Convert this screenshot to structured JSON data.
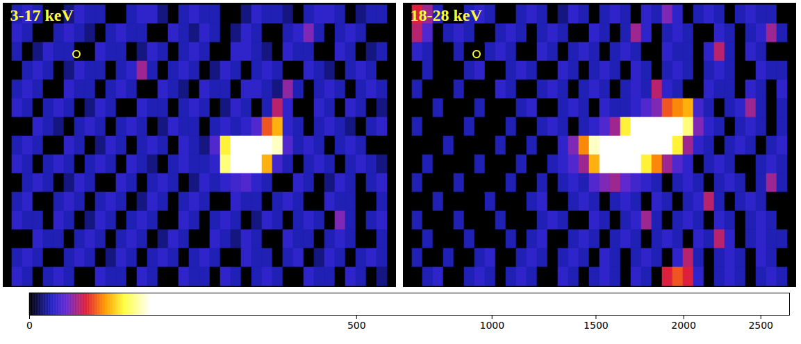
{
  "chart_data": [
    {
      "type": "heatmap",
      "title": "3-17 keV",
      "tick_labels": false,
      "cells": [
        [
          2,
          3,
          2,
          0,
          0,
          1,
          3,
          2,
          2,
          0,
          0,
          2,
          3,
          3,
          1,
          0,
          2,
          3,
          2,
          2,
          0,
          0,
          1,
          3,
          2,
          2,
          1,
          0,
          2,
          3,
          3,
          2,
          0,
          1,
          2,
          2
        ],
        [
          3,
          2,
          0,
          0,
          2,
          3,
          2,
          1,
          0,
          2,
          3,
          2,
          2,
          0,
          0,
          3,
          2,
          1,
          3,
          2,
          0,
          1,
          3,
          2,
          0,
          0,
          2,
          3,
          8,
          2,
          0,
          2,
          3,
          2,
          0,
          0
        ],
        [
          2,
          0,
          1,
          3,
          2,
          2,
          0,
          0,
          3,
          2,
          2,
          0,
          1,
          3,
          2,
          0,
          2,
          3,
          2,
          0,
          0,
          3,
          3,
          2,
          1,
          0,
          3,
          2,
          2,
          0,
          0,
          3,
          2,
          0,
          1,
          2
        ],
        [
          0,
          2,
          3,
          2,
          0,
          1,
          3,
          2,
          2,
          0,
          2,
          3,
          10,
          2,
          0,
          2,
          3,
          2,
          0,
          1,
          3,
          2,
          0,
          2,
          3,
          2,
          0,
          0,
          3,
          2,
          1,
          0,
          2,
          3,
          2,
          0
        ],
        [
          2,
          3,
          2,
          0,
          0,
          3,
          2,
          2,
          0,
          2,
          3,
          2,
          0,
          0,
          3,
          2,
          1,
          0,
          3,
          2,
          2,
          0,
          3,
          3,
          2,
          1,
          9,
          2,
          0,
          2,
          3,
          2,
          0,
          2,
          3,
          2
        ],
        [
          3,
          2,
          0,
          2,
          3,
          2,
          0,
          1,
          3,
          2,
          0,
          0,
          3,
          2,
          2,
          0,
          2,
          3,
          2,
          0,
          1,
          3,
          2,
          0,
          2,
          12,
          3,
          0,
          0,
          3,
          2,
          0,
          3,
          2,
          0,
          1
        ],
        [
          0,
          0,
          3,
          2,
          1,
          0,
          2,
          3,
          2,
          0,
          2,
          3,
          2,
          0,
          1,
          3,
          2,
          2,
          0,
          2,
          3,
          2,
          3,
          5,
          20,
          30,
          3,
          2,
          0,
          2,
          3,
          2,
          1,
          0,
          2,
          3
        ],
        [
          2,
          3,
          2,
          0,
          0,
          3,
          2,
          0,
          1,
          3,
          2,
          0,
          2,
          3,
          2,
          0,
          3,
          2,
          1,
          5,
          40,
          2400,
          2700,
          2700,
          2600,
          60,
          5,
          2,
          3,
          2,
          0,
          2,
          3,
          2,
          0,
          0
        ],
        [
          3,
          2,
          0,
          2,
          3,
          2,
          0,
          2,
          3,
          2,
          0,
          3,
          2,
          1,
          0,
          2,
          3,
          2,
          2,
          3,
          50,
          1500,
          2200,
          1800,
          30,
          4,
          2,
          0,
          2,
          3,
          2,
          0,
          2,
          3,
          2,
          1
        ],
        [
          0,
          2,
          3,
          2,
          0,
          1,
          3,
          2,
          0,
          0,
          3,
          2,
          0,
          2,
          3,
          2,
          0,
          1,
          3,
          2,
          3,
          4,
          5,
          3,
          2,
          0,
          0,
          3,
          2,
          0,
          1,
          3,
          2,
          0,
          2,
          3
        ],
        [
          2,
          3,
          0,
          0,
          2,
          3,
          2,
          0,
          2,
          3,
          2,
          0,
          1,
          3,
          2,
          0,
          2,
          3,
          2,
          0,
          0,
          3,
          2,
          2,
          0,
          2,
          3,
          2,
          0,
          0,
          3,
          2,
          2,
          0,
          0,
          2
        ],
        [
          3,
          2,
          2,
          0,
          3,
          2,
          0,
          1,
          3,
          2,
          0,
          2,
          3,
          2,
          0,
          0,
          3,
          2,
          0,
          2,
          3,
          2,
          0,
          1,
          3,
          2,
          0,
          2,
          3,
          2,
          0,
          8,
          2,
          0,
          2,
          3
        ],
        [
          0,
          0,
          3,
          2,
          2,
          0,
          2,
          3,
          2,
          0,
          2,
          3,
          2,
          0,
          1,
          3,
          2,
          0,
          0,
          3,
          2,
          1,
          3,
          2,
          0,
          0,
          3,
          2,
          2,
          0,
          2,
          3,
          2,
          0,
          0,
          2
        ],
        [
          2,
          3,
          2,
          0,
          0,
          2,
          3,
          2,
          0,
          1,
          3,
          2,
          0,
          2,
          3,
          2,
          0,
          2,
          3,
          2,
          0,
          0,
          3,
          2,
          2,
          0,
          2,
          3,
          0,
          1,
          3,
          2,
          0,
          2,
          3,
          2
        ],
        [
          3,
          2,
          0,
          2,
          3,
          2,
          0,
          0,
          3,
          2,
          2,
          0,
          3,
          2,
          0,
          0,
          3,
          2,
          2,
          0,
          3,
          2,
          0,
          2,
          3,
          2,
          0,
          0,
          3,
          2,
          2,
          0,
          3,
          2,
          0,
          1
        ]
      ]
    },
    {
      "type": "heatmap",
      "title": "18-28 keV",
      "tick_labels": false,
      "cells": [
        [
          15,
          10,
          2,
          0,
          0,
          2,
          3,
          2,
          0,
          0,
          2,
          3,
          2,
          0,
          1,
          3,
          2,
          0,
          2,
          3,
          2,
          0,
          3,
          2,
          8,
          3,
          0,
          2,
          3,
          2,
          0,
          2,
          3,
          2,
          2,
          0
        ],
        [
          12,
          5,
          0,
          2,
          3,
          2,
          0,
          0,
          2,
          3,
          2,
          0,
          2,
          3,
          2,
          0,
          0,
          3,
          2,
          0,
          2,
          10,
          3,
          0,
          2,
          3,
          2,
          0,
          0,
          3,
          2,
          0,
          2,
          3,
          10,
          2
        ],
        [
          3,
          2,
          0,
          0,
          2,
          0,
          0,
          2,
          3,
          2,
          0,
          0,
          3,
          2,
          0,
          2,
          3,
          2,
          0,
          2,
          3,
          2,
          0,
          0,
          3,
          2,
          2,
          0,
          3,
          12,
          2,
          0,
          3,
          2,
          0,
          0
        ],
        [
          0,
          2,
          0,
          0,
          0,
          2,
          3,
          0,
          0,
          2,
          3,
          2,
          0,
          0,
          3,
          2,
          0,
          2,
          3,
          2,
          0,
          3,
          2,
          0,
          2,
          3,
          2,
          0,
          2,
          3,
          2,
          0,
          0,
          3,
          2,
          2
        ],
        [
          2,
          0,
          0,
          0,
          2,
          0,
          0,
          0,
          3,
          2,
          0,
          0,
          2,
          3,
          2,
          0,
          2,
          3,
          2,
          0,
          2,
          3,
          2,
          12,
          3,
          2,
          0,
          0,
          3,
          2,
          2,
          0,
          3,
          2,
          0,
          3
        ],
        [
          0,
          0,
          2,
          0,
          0,
          0,
          2,
          0,
          0,
          0,
          2,
          3,
          0,
          0,
          2,
          3,
          2,
          0,
          3,
          2,
          2,
          3,
          5,
          8,
          20,
          25,
          30,
          4,
          2,
          0,
          2,
          3,
          10,
          2,
          0,
          2
        ],
        [
          2,
          0,
          0,
          0,
          0,
          2,
          0,
          0,
          0,
          2,
          0,
          0,
          2,
          3,
          2,
          0,
          2,
          3,
          5,
          10,
          40,
          300,
          2000,
          2600,
          2700,
          1500,
          50,
          8,
          3,
          2,
          0,
          2,
          3,
          2,
          0,
          2
        ],
        [
          0,
          0,
          0,
          2,
          0,
          0,
          0,
          0,
          2,
          0,
          0,
          2,
          0,
          0,
          3,
          8,
          25,
          60,
          2000,
          2700,
          2700,
          2700,
          2700,
          2600,
          800,
          40,
          10,
          3,
          2,
          0,
          2,
          3,
          2,
          0,
          2,
          3
        ],
        [
          0,
          2,
          0,
          0,
          0,
          0,
          2,
          0,
          0,
          0,
          2,
          0,
          0,
          2,
          3,
          5,
          10,
          30,
          80,
          2000,
          1800,
          400,
          40,
          25,
          10,
          5,
          3,
          0,
          2,
          3,
          2,
          0,
          0,
          2,
          3,
          2
        ],
        [
          2,
          0,
          0,
          0,
          2,
          0,
          0,
          0,
          0,
          2,
          0,
          0,
          2,
          0,
          2,
          3,
          2,
          5,
          8,
          10,
          6,
          4,
          3,
          2,
          0,
          2,
          3,
          2,
          0,
          2,
          3,
          2,
          0,
          2,
          10,
          2
        ],
        [
          0,
          0,
          2,
          0,
          0,
          0,
          0,
          2,
          0,
          0,
          0,
          2,
          3,
          0,
          0,
          2,
          3,
          2,
          0,
          2,
          3,
          2,
          0,
          3,
          2,
          0,
          2,
          3,
          12,
          2,
          0,
          2,
          3,
          2,
          0,
          0
        ],
        [
          2,
          0,
          0,
          0,
          2,
          0,
          0,
          0,
          2,
          0,
          0,
          0,
          2,
          3,
          2,
          0,
          0,
          3,
          2,
          0,
          2,
          3,
          10,
          2,
          0,
          2,
          3,
          2,
          0,
          3,
          2,
          0,
          2,
          3,
          2,
          0
        ],
        [
          0,
          2,
          0,
          0,
          0,
          2,
          0,
          0,
          0,
          2,
          0,
          2,
          3,
          0,
          0,
          2,
          3,
          2,
          0,
          2,
          3,
          2,
          0,
          2,
          3,
          2,
          0,
          3,
          2,
          12,
          3,
          0,
          2,
          3,
          2,
          2
        ],
        [
          2,
          0,
          0,
          2,
          0,
          0,
          2,
          3,
          0,
          0,
          2,
          3,
          2,
          0,
          2,
          3,
          2,
          0,
          3,
          2,
          0,
          2,
          3,
          2,
          0,
          3,
          12,
          2,
          0,
          2,
          3,
          2,
          0,
          3,
          2,
          0
        ],
        [
          0,
          2,
          3,
          0,
          0,
          2,
          3,
          2,
          0,
          2,
          3,
          2,
          0,
          0,
          3,
          2,
          0,
          2,
          3,
          2,
          0,
          3,
          2,
          0,
          15,
          20,
          15,
          3,
          0,
          2,
          3,
          2,
          0,
          2,
          3,
          2
        ]
      ]
    }
  ],
  "colorbar": {
    "range": [
      0,
      2700
    ],
    "ticks": [
      0,
      500,
      1000,
      1500,
      2000,
      2500
    ]
  }
}
